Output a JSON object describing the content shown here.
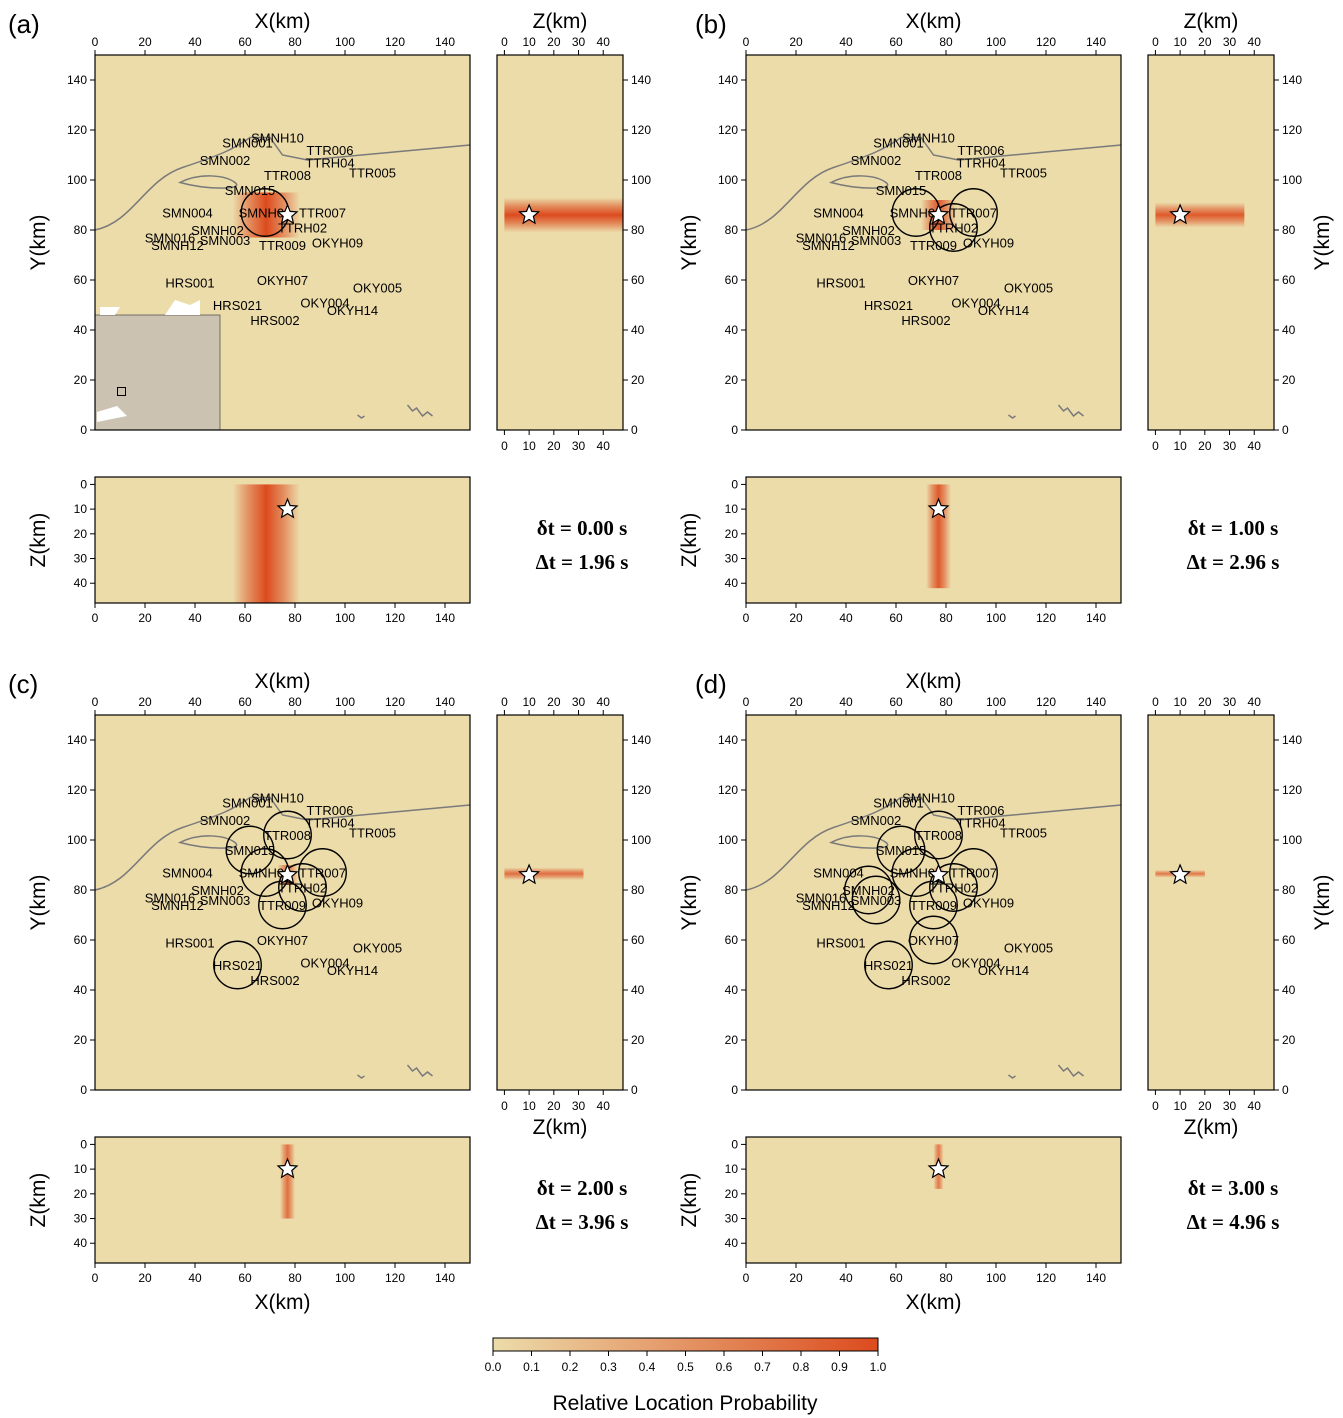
{
  "figure": {
    "colorbar": {
      "label": "Relative Location Probability",
      "ticks": [
        "0.0",
        "0.1",
        "0.2",
        "0.3",
        "0.4",
        "0.5",
        "0.6",
        "0.7",
        "0.8",
        "0.9",
        "1.0"
      ],
      "color_low": "#ecdcaa",
      "color_high": "#dc4b1e"
    },
    "colors": {
      "map_bg": "#ecdcaa",
      "heat": "#dc4b1e",
      "coast": "#7a7a7a",
      "inset_land": "#cbc2b2"
    }
  },
  "chart_data": [
    {
      "type": "heatmap",
      "panel": "(a)",
      "xlabel": "X(km)",
      "ylabel": "Y(km)",
      "zlabel": "Z(km)",
      "xlim": [
        0,
        150
      ],
      "ylim": [
        0,
        150
      ],
      "zlim": [
        0,
        48
      ],
      "xticks": [
        "0",
        "20",
        "40",
        "60",
        "80",
        "100",
        "120",
        "140"
      ],
      "yticks": [
        "0",
        "20",
        "40",
        "60",
        "80",
        "100",
        "120",
        "140"
      ],
      "zticks": [
        "0",
        "10",
        "20",
        "30",
        "40"
      ],
      "annotation": {
        "delta_small": "δt = 0.00 s",
        "delta_big": "Δt = 1.96 s"
      },
      "epicenter": {
        "x": 77,
        "y": 86,
        "z": 10
      },
      "stations": [
        {
          "name": "SMNH10",
          "x": 73,
          "y": 117
        },
        {
          "name": "SMN001",
          "x": 61,
          "y": 115
        },
        {
          "name": "SMN002",
          "x": 52,
          "y": 108
        },
        {
          "name": "TTR006",
          "x": 94,
          "y": 112
        },
        {
          "name": "TTRH04",
          "x": 94,
          "y": 107
        },
        {
          "name": "TTR005",
          "x": 111,
          "y": 103
        },
        {
          "name": "TTR008",
          "x": 77,
          "y": 102
        },
        {
          "name": "SMN015",
          "x": 62,
          "y": 96
        },
        {
          "name": "SMN004",
          "x": 37,
          "y": 87
        },
        {
          "name": "SMNH01",
          "x": 68,
          "y": 87
        },
        {
          "name": "TTR007",
          "x": 91,
          "y": 87
        },
        {
          "name": "TTRH02",
          "x": 83,
          "y": 81
        },
        {
          "name": "SMNH02",
          "x": 49,
          "y": 80
        },
        {
          "name": "SMN016",
          "x": 30,
          "y": 77
        },
        {
          "name": "SMN003",
          "x": 52,
          "y": 76
        },
        {
          "name": "SMNH12",
          "x": 33,
          "y": 74
        },
        {
          "name": "TTR009",
          "x": 75,
          "y": 74
        },
        {
          "name": "OKYH09",
          "x": 97,
          "y": 75
        },
        {
          "name": "HRS001",
          "x": 38,
          "y": 59
        },
        {
          "name": "OKYH07",
          "x": 75,
          "y": 60
        },
        {
          "name": "OKY005",
          "x": 113,
          "y": 57
        },
        {
          "name": "HRS021",
          "x": 57,
          "y": 50
        },
        {
          "name": "OKY004",
          "x": 92,
          "y": 51
        },
        {
          "name": "OKYH14",
          "x": 103,
          "y": 48
        },
        {
          "name": "HRS002",
          "x": 72,
          "y": 44
        }
      ],
      "triggered_stations": [
        "SMNH01"
      ],
      "circle_radius_km": 9.5,
      "pdf_xy": {
        "x_range": [
          55,
          82
        ],
        "y_range": [
          77,
          95
        ],
        "peak": 1.0
      },
      "pdf_xz": {
        "x_range": [
          55,
          82
        ],
        "z_range": [
          0,
          48
        ],
        "peak": 1.0
      },
      "pdf_zy": {
        "z_range": [
          0,
          48
        ],
        "y_range": [
          79,
          93
        ],
        "peak": 1.0
      }
    },
    {
      "type": "heatmap",
      "panel": "(b)",
      "xlabel": "X(km)",
      "ylabel": "Y(km)",
      "zlabel": "Z(km)",
      "xlim": [
        0,
        150
      ],
      "ylim": [
        0,
        150
      ],
      "zlim": [
        0,
        48
      ],
      "xticks": [
        "0",
        "20",
        "40",
        "60",
        "80",
        "100",
        "120",
        "140"
      ],
      "yticks": [
        "0",
        "20",
        "40",
        "60",
        "80",
        "100",
        "120",
        "140"
      ],
      "zticks": [
        "0",
        "10",
        "20",
        "30",
        "40"
      ],
      "annotation": {
        "delta_small": "δt = 1.00 s",
        "delta_big": "Δt = 2.96 s"
      },
      "epicenter": {
        "x": 77,
        "y": 86,
        "z": 10
      },
      "stations": [
        {
          "name": "SMNH10",
          "x": 73,
          "y": 117
        },
        {
          "name": "SMN001",
          "x": 61,
          "y": 115
        },
        {
          "name": "SMN002",
          "x": 52,
          "y": 108
        },
        {
          "name": "TTR006",
          "x": 94,
          "y": 112
        },
        {
          "name": "TTRH04",
          "x": 94,
          "y": 107
        },
        {
          "name": "TTR005",
          "x": 111,
          "y": 103
        },
        {
          "name": "TTR008",
          "x": 77,
          "y": 102
        },
        {
          "name": "SMN015",
          "x": 62,
          "y": 96
        },
        {
          "name": "SMN004",
          "x": 37,
          "y": 87
        },
        {
          "name": "SMNH01",
          "x": 68,
          "y": 87
        },
        {
          "name": "TTR007",
          "x": 91,
          "y": 87
        },
        {
          "name": "TTRH02",
          "x": 83,
          "y": 81
        },
        {
          "name": "SMNH02",
          "x": 49,
          "y": 80
        },
        {
          "name": "SMN016",
          "x": 30,
          "y": 77
        },
        {
          "name": "SMN003",
          "x": 52,
          "y": 76
        },
        {
          "name": "SMNH12",
          "x": 33,
          "y": 74
        },
        {
          "name": "TTR009",
          "x": 75,
          "y": 74
        },
        {
          "name": "OKYH09",
          "x": 97,
          "y": 75
        },
        {
          "name": "HRS001",
          "x": 38,
          "y": 59
        },
        {
          "name": "OKYH07",
          "x": 75,
          "y": 60
        },
        {
          "name": "OKY005",
          "x": 113,
          "y": 57
        },
        {
          "name": "HRS021",
          "x": 57,
          "y": 50
        },
        {
          "name": "OKY004",
          "x": 92,
          "y": 51
        },
        {
          "name": "OKYH14",
          "x": 103,
          "y": 48
        },
        {
          "name": "HRS002",
          "x": 72,
          "y": 44
        }
      ],
      "triggered_stations": [
        "SMNH01",
        "TTR007",
        "TTRH02"
      ],
      "circle_radius_km": 9.5,
      "pdf_xy": {
        "x_range": [
          70,
          84
        ],
        "y_range": [
          80,
          92
        ],
        "peak": 0.9
      },
      "pdf_xz": {
        "x_range": [
          72,
          82
        ],
        "z_range": [
          0,
          42
        ],
        "peak": 0.9
      },
      "pdf_zy": {
        "z_range": [
          0,
          36
        ],
        "y_range": [
          81,
          91
        ],
        "peak": 0.9
      }
    },
    {
      "type": "heatmap",
      "panel": "(c)",
      "xlabel": "X(km)",
      "ylabel": "Y(km)",
      "zlabel": "Z(km)",
      "xlim": [
        0,
        150
      ],
      "ylim": [
        0,
        150
      ],
      "zlim": [
        0,
        48
      ],
      "xticks": [
        "0",
        "20",
        "40",
        "60",
        "80",
        "100",
        "120",
        "140"
      ],
      "yticks": [
        "0",
        "20",
        "40",
        "60",
        "80",
        "100",
        "120",
        "140"
      ],
      "zticks": [
        "0",
        "10",
        "20",
        "30",
        "40"
      ],
      "annotation": {
        "delta_small": "δt = 2.00 s",
        "delta_big": "Δt = 3.96 s"
      },
      "epicenter": {
        "x": 77,
        "y": 86,
        "z": 10
      },
      "stations": [
        {
          "name": "SMNH10",
          "x": 73,
          "y": 117
        },
        {
          "name": "SMN001",
          "x": 61,
          "y": 115
        },
        {
          "name": "SMN002",
          "x": 52,
          "y": 108
        },
        {
          "name": "TTR006",
          "x": 94,
          "y": 112
        },
        {
          "name": "TTRH04",
          "x": 94,
          "y": 107
        },
        {
          "name": "TTR005",
          "x": 111,
          "y": 103
        },
        {
          "name": "TTR008",
          "x": 77,
          "y": 102
        },
        {
          "name": "SMN015",
          "x": 62,
          "y": 96
        },
        {
          "name": "SMN004",
          "x": 37,
          "y": 87
        },
        {
          "name": "SMNH01",
          "x": 68,
          "y": 87
        },
        {
          "name": "TTR007",
          "x": 91,
          "y": 87
        },
        {
          "name": "TTRH02",
          "x": 83,
          "y": 81
        },
        {
          "name": "SMNH02",
          "x": 49,
          "y": 80
        },
        {
          "name": "SMN016",
          "x": 30,
          "y": 77
        },
        {
          "name": "SMN003",
          "x": 52,
          "y": 76
        },
        {
          "name": "SMNH12",
          "x": 33,
          "y": 74
        },
        {
          "name": "TTR009",
          "x": 75,
          "y": 74
        },
        {
          "name": "OKYH09",
          "x": 97,
          "y": 75
        },
        {
          "name": "HRS001",
          "x": 38,
          "y": 59
        },
        {
          "name": "OKYH07",
          "x": 75,
          "y": 60
        },
        {
          "name": "OKY005",
          "x": 113,
          "y": 57
        },
        {
          "name": "HRS021",
          "x": 57,
          "y": 50
        },
        {
          "name": "OKY004",
          "x": 92,
          "y": 51
        },
        {
          "name": "OKYH14",
          "x": 103,
          "y": 48
        },
        {
          "name": "HRS002",
          "x": 72,
          "y": 44
        }
      ],
      "triggered_stations": [
        "SMNH01",
        "TTR007",
        "TTRH02",
        "TTR008",
        "SMN015",
        "TTR009",
        "HRS021"
      ],
      "circle_radius_km": 9.5,
      "pdf_xy": {
        "x_range": [
          73,
          81
        ],
        "y_range": [
          82,
          90
        ],
        "peak": 0.75
      },
      "pdf_xz": {
        "x_range": [
          74,
          80
        ],
        "z_range": [
          0,
          30
        ],
        "peak": 0.75
      },
      "pdf_zy": {
        "z_range": [
          0,
          32
        ],
        "y_range": [
          84,
          89
        ],
        "peak": 0.75
      }
    },
    {
      "type": "heatmap",
      "panel": "(d)",
      "xlabel": "X(km)",
      "ylabel": "Y(km)",
      "zlabel": "Z(km)",
      "xlim": [
        0,
        150
      ],
      "ylim": [
        0,
        150
      ],
      "zlim": [
        0,
        48
      ],
      "xticks": [
        "0",
        "20",
        "40",
        "60",
        "80",
        "100",
        "120",
        "140"
      ],
      "yticks": [
        "0",
        "20",
        "40",
        "60",
        "80",
        "100",
        "120",
        "140"
      ],
      "zticks": [
        "0",
        "10",
        "20",
        "30",
        "40"
      ],
      "annotation": {
        "delta_small": "δt = 3.00 s",
        "delta_big": "Δt = 4.96 s"
      },
      "epicenter": {
        "x": 77,
        "y": 86,
        "z": 10
      },
      "stations": [
        {
          "name": "SMNH10",
          "x": 73,
          "y": 117
        },
        {
          "name": "SMN001",
          "x": 61,
          "y": 115
        },
        {
          "name": "SMN002",
          "x": 52,
          "y": 108
        },
        {
          "name": "TTR006",
          "x": 94,
          "y": 112
        },
        {
          "name": "TTRH04",
          "x": 94,
          "y": 107
        },
        {
          "name": "TTR005",
          "x": 111,
          "y": 103
        },
        {
          "name": "TTR008",
          "x": 77,
          "y": 102
        },
        {
          "name": "SMN015",
          "x": 62,
          "y": 96
        },
        {
          "name": "SMN004",
          "x": 37,
          "y": 87
        },
        {
          "name": "SMNH01",
          "x": 68,
          "y": 87
        },
        {
          "name": "TTR007",
          "x": 91,
          "y": 87
        },
        {
          "name": "TTRH02",
          "x": 83,
          "y": 81
        },
        {
          "name": "SMNH02",
          "x": 49,
          "y": 80
        },
        {
          "name": "SMN016",
          "x": 30,
          "y": 77
        },
        {
          "name": "SMN003",
          "x": 52,
          "y": 76
        },
        {
          "name": "SMNH12",
          "x": 33,
          "y": 74
        },
        {
          "name": "TTR009",
          "x": 75,
          "y": 74
        },
        {
          "name": "OKYH09",
          "x": 97,
          "y": 75
        },
        {
          "name": "HRS001",
          "x": 38,
          "y": 59
        },
        {
          "name": "OKYH07",
          "x": 75,
          "y": 60
        },
        {
          "name": "OKY005",
          "x": 113,
          "y": 57
        },
        {
          "name": "HRS021",
          "x": 57,
          "y": 50
        },
        {
          "name": "OKY004",
          "x": 92,
          "y": 51
        },
        {
          "name": "OKYH14",
          "x": 103,
          "y": 48
        },
        {
          "name": "HRS002",
          "x": 72,
          "y": 44
        }
      ],
      "triggered_stations": [
        "SMNH01",
        "TTR007",
        "TTRH02",
        "TTR008",
        "SMN015",
        "TTR009",
        "HRS021",
        "SMNH02",
        "SMN003",
        "OKYH07"
      ],
      "circle_radius_km": 9.5,
      "pdf_xy": {
        "x_range": [
          75,
          79
        ],
        "y_range": [
          84,
          89
        ],
        "peak": 0.7
      },
      "pdf_xz": {
        "x_range": [
          75,
          79
        ],
        "z_range": [
          0,
          18
        ],
        "peak": 0.7
      },
      "pdf_zy": {
        "z_range": [
          0,
          20
        ],
        "y_range": [
          85,
          88
        ],
        "peak": 0.7
      }
    }
  ]
}
